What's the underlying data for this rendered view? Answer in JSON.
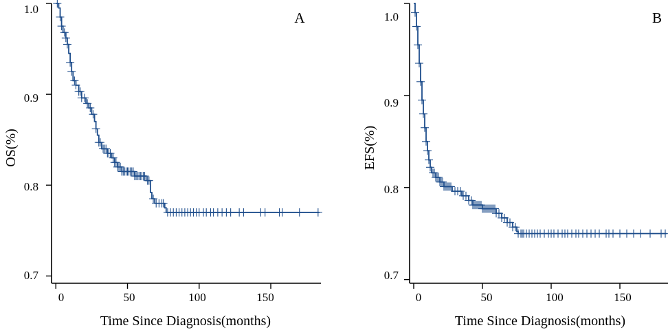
{
  "chart_data": [
    {
      "type": "line",
      "panel": "A",
      "ylabel": "OS(%)",
      "xlabel": "Time Since Diagnosis(months)",
      "xlim": [
        -3,
        185
      ],
      "ylim": [
        0.692,
        1.0
      ],
      "xticks": [
        0,
        50,
        100,
        150
      ],
      "yticks": [
        0.7,
        0.8,
        0.9,
        1.0
      ],
      "xtick_labels": [
        "0",
        "50",
        "100",
        "150"
      ],
      "ytick_labels": [
        "0.7",
        "0.8",
        "0.9",
        "1.0"
      ],
      "color": "#1f4e8c",
      "series": [
        {
          "name": "OS",
          "steps": [
            [
              0,
              1.0
            ],
            [
              2,
              0.995
            ],
            [
              3,
              0.985
            ],
            [
              4,
              0.975
            ],
            [
              5,
              0.968
            ],
            [
              7,
              0.962
            ],
            [
              8,
              0.955
            ],
            [
              9,
              0.945
            ],
            [
              10,
              0.935
            ],
            [
              11,
              0.925
            ],
            [
              12,
              0.915
            ],
            [
              14,
              0.91
            ],
            [
              16,
              0.903
            ],
            [
              18,
              0.896
            ],
            [
              21,
              0.89
            ],
            [
              23,
              0.885
            ],
            [
              25,
              0.878
            ],
            [
              27,
              0.87
            ],
            [
              28,
              0.862
            ],
            [
              29,
              0.855
            ],
            [
              30,
              0.847
            ],
            [
              32,
              0.84
            ],
            [
              36,
              0.835
            ],
            [
              39,
              0.83
            ],
            [
              41,
              0.825
            ],
            [
              43,
              0.82
            ],
            [
              46,
              0.815
            ],
            [
              55,
              0.81
            ],
            [
              63,
              0.805
            ],
            [
              66,
              0.792
            ],
            [
              67,
              0.785
            ],
            [
              69,
              0.78
            ],
            [
              76,
              0.775
            ],
            [
              77,
              0.77
            ],
            [
              184,
              0.77
            ]
          ],
          "censored": [
            1,
            3,
            4,
            6,
            7,
            8,
            10,
            11,
            13,
            14,
            16,
            17,
            18,
            20,
            22,
            24,
            26,
            28,
            30,
            31,
            33,
            34,
            35,
            36,
            37,
            38,
            40,
            41,
            42,
            43,
            44,
            45,
            46,
            47,
            48,
            49,
            50,
            51,
            52,
            53,
            54,
            55,
            56,
            57,
            58,
            59,
            60,
            61,
            62,
            64,
            65,
            68,
            70,
            72,
            74,
            75,
            78,
            80,
            82,
            84,
            86,
            88,
            90,
            92,
            94,
            96,
            98,
            100,
            103,
            105,
            108,
            110,
            113,
            116,
            119,
            122,
            128,
            131,
            143,
            146,
            156,
            158,
            170,
            183
          ]
        }
      ]
    },
    {
      "type": "line",
      "panel": "B",
      "ylabel": "EFS(%)",
      "xlabel": "Time Since Diagnosis(months)",
      "xlim": [
        -3,
        185
      ],
      "ylim": [
        0.696,
        1.0
      ],
      "xticks": [
        0,
        50,
        100,
        150
      ],
      "yticks": [
        0.7,
        0.8,
        0.9,
        1.0
      ],
      "xtick_labels": [
        "0",
        "50",
        "100",
        "150"
      ],
      "ytick_labels": [
        "0.7",
        "0.8",
        "0.9",
        "1.0"
      ],
      "color": "#1f4e8c",
      "series": [
        {
          "name": "EFS",
          "steps": [
            [
              0,
              1.0
            ],
            [
              1,
              0.99
            ],
            [
              2,
              0.975
            ],
            [
              3,
              0.955
            ],
            [
              4,
              0.935
            ],
            [
              5,
              0.915
            ],
            [
              6,
              0.895
            ],
            [
              7,
              0.88
            ],
            [
              8,
              0.865
            ],
            [
              9,
              0.85
            ],
            [
              10,
              0.84
            ],
            [
              11,
              0.83
            ],
            [
              12,
              0.822
            ],
            [
              13,
              0.816
            ],
            [
              16,
              0.811
            ],
            [
              19,
              0.806
            ],
            [
              22,
              0.801
            ],
            [
              28,
              0.796
            ],
            [
              35,
              0.791
            ],
            [
              40,
              0.786
            ],
            [
              43,
              0.781
            ],
            [
              50,
              0.777
            ],
            [
              60,
              0.772
            ],
            [
              64,
              0.767
            ],
            [
              68,
              0.762
            ],
            [
              72,
              0.757
            ],
            [
              75,
              0.752
            ],
            [
              76,
              0.75
            ],
            [
              184,
              0.75
            ]
          ],
          "censored": [
            1,
            2,
            3,
            4,
            5,
            6,
            7,
            8,
            9,
            10,
            11,
            12,
            14,
            15,
            16,
            17,
            18,
            19,
            20,
            21,
            22,
            23,
            24,
            25,
            26,
            27,
            30,
            32,
            34,
            36,
            38,
            40,
            42,
            43,
            44,
            45,
            46,
            47,
            48,
            49,
            50,
            51,
            52,
            53,
            54,
            55,
            56,
            57,
            58,
            59,
            60,
            62,
            64,
            66,
            68,
            70,
            72,
            74,
            76,
            78,
            79,
            80,
            82,
            84,
            86,
            88,
            90,
            92,
            95,
            98,
            100,
            102,
            105,
            108,
            110,
            112,
            115,
            118,
            120,
            123,
            126,
            129,
            132,
            135,
            140,
            142,
            145,
            150,
            155,
            160,
            165,
            172,
            180,
            183
          ]
        }
      ]
    }
  ]
}
